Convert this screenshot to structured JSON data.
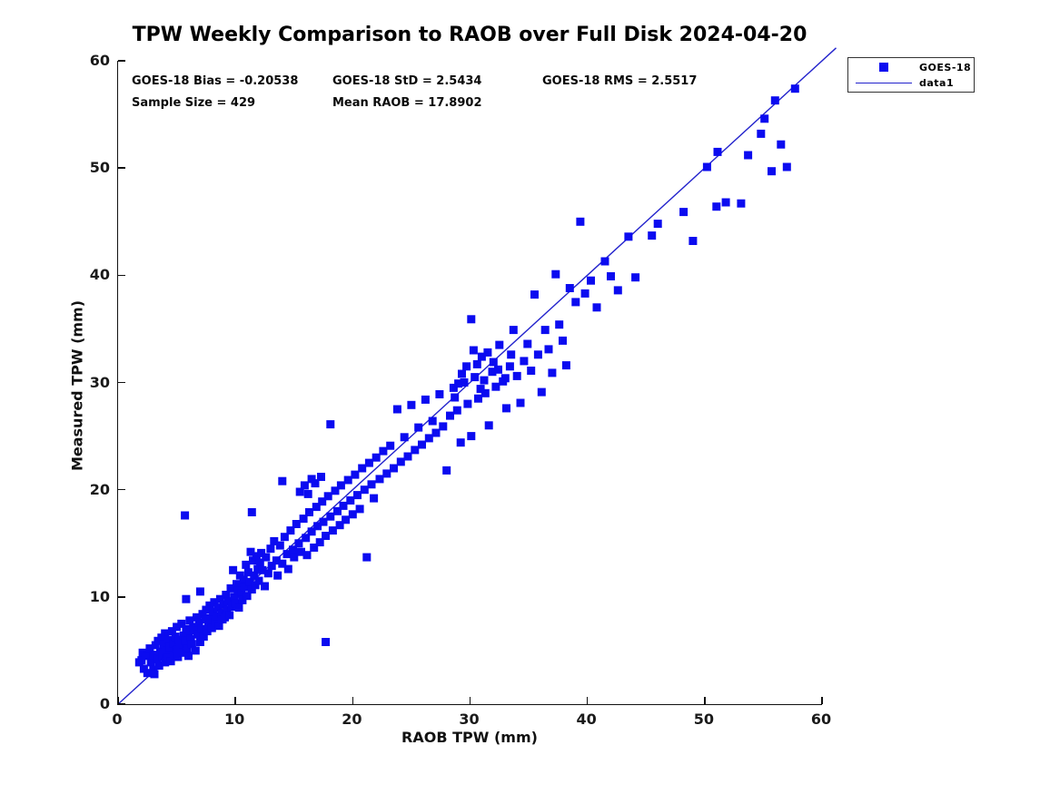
{
  "chart_data": {
    "type": "scatter",
    "title": "TPW Weekly Comparison to RAOB over Full Disk 2024-04-20",
    "xlabel": "RAOB TPW (mm)",
    "ylabel": "Measured TPW (mm)",
    "xlim": [
      0,
      60
    ],
    "ylim": [
      0,
      60
    ],
    "xticks": [
      0,
      10,
      20,
      30,
      40,
      50,
      60
    ],
    "yticks": [
      0,
      10,
      20,
      30,
      40,
      50,
      60
    ],
    "grid": false,
    "legend_position": "top-right-outside",
    "legend": [
      {
        "label": "GOES-18",
        "glyph": "square-marker"
      },
      {
        "label": "data1",
        "glyph": "line"
      }
    ],
    "stats": {
      "bias": "GOES-18 Bias = -0.20538",
      "std": "GOES-18 StD = 2.5434",
      "rms": "GOES-18 RMS = 2.5517",
      "sample": "Sample Size = 429",
      "mean_raob": "Mean RAOB = 17.8902"
    },
    "colors": {
      "marker": "#0b0bf0",
      "line": "#2222cc",
      "axis": "#111111"
    },
    "identity_line": {
      "x": [
        0,
        61.2
      ],
      "y": [
        0,
        61.2
      ]
    },
    "marker_size_px": 9,
    "series": [
      {
        "name": "GOES-18",
        "marker": "square",
        "points": [
          [
            1.8,
            3.9
          ],
          [
            2.0,
            4.1
          ],
          [
            2.1,
            4.8
          ],
          [
            2.2,
            3.3
          ],
          [
            2.4,
            4.5
          ],
          [
            2.5,
            2.9
          ],
          [
            2.7,
            5.2
          ],
          [
            2.8,
            3.9
          ],
          [
            3.0,
            4.6
          ],
          [
            3.0,
            3.2
          ],
          [
            3.1,
            2.8
          ],
          [
            3.2,
            5.5
          ],
          [
            3.3,
            4.2
          ],
          [
            3.4,
            5.9
          ],
          [
            3.5,
            3.6
          ],
          [
            3.6,
            4.9
          ],
          [
            3.7,
            6.2
          ],
          [
            3.8,
            4.4
          ],
          [
            3.9,
            5.6
          ],
          [
            4.0,
            3.9
          ],
          [
            4.0,
            6.6
          ],
          [
            4.1,
            5.0
          ],
          [
            4.2,
            4.3
          ],
          [
            4.3,
            6.0
          ],
          [
            4.4,
            5.3
          ],
          [
            4.5,
            4.0
          ],
          [
            4.6,
            6.8
          ],
          [
            4.7,
            5.7
          ],
          [
            4.8,
            4.6
          ],
          [
            4.9,
            6.3
          ],
          [
            5.0,
            5.1
          ],
          [
            5.0,
            7.2
          ],
          [
            5.1,
            4.4
          ],
          [
            5.2,
            6.0
          ],
          [
            5.3,
            5.5
          ],
          [
            5.4,
            7.5
          ],
          [
            5.5,
            4.8
          ],
          [
            5.7,
            17.6
          ],
          [
            5.6,
            6.4
          ],
          [
            5.7,
            5.9
          ],
          [
            5.8,
            7.0
          ],
          [
            5.8,
            9.8
          ],
          [
            5.9,
            5.2
          ],
          [
            6.0,
            6.7
          ],
          [
            6.0,
            4.5
          ],
          [
            6.1,
            7.8
          ],
          [
            6.2,
            6.1
          ],
          [
            6.3,
            5.6
          ],
          [
            6.4,
            7.2
          ],
          [
            6.5,
            6.9
          ],
          [
            6.6,
            5.0
          ],
          [
            6.7,
            8.1
          ],
          [
            6.8,
            6.5
          ],
          [
            6.9,
            7.6
          ],
          [
            7.0,
            5.8
          ],
          [
            7.0,
            10.5
          ],
          [
            7.1,
            7.0
          ],
          [
            7.2,
            8.4
          ],
          [
            7.3,
            6.3
          ],
          [
            7.4,
            7.9
          ],
          [
            7.5,
            8.8
          ],
          [
            7.6,
            6.8
          ],
          [
            7.7,
            7.4
          ],
          [
            7.8,
            9.2
          ],
          [
            7.9,
            8.0
          ],
          [
            8.0,
            7.1
          ],
          [
            8.1,
            8.6
          ],
          [
            8.2,
            9.5
          ],
          [
            8.3,
            7.7
          ],
          [
            8.4,
            8.2
          ],
          [
            8.5,
            9.0
          ],
          [
            8.6,
            7.3
          ],
          [
            8.7,
            9.8
          ],
          [
            8.8,
            8.5
          ],
          [
            8.9,
            7.9
          ],
          [
            9.0,
            9.3
          ],
          [
            9.1,
            8.1
          ],
          [
            9.2,
            10.2
          ],
          [
            9.3,
            8.8
          ],
          [
            9.4,
            9.6
          ],
          [
            9.5,
            8.3
          ],
          [
            9.6,
            10.8
          ],
          [
            9.7,
            9.1
          ],
          [
            9.8,
            12.5
          ],
          [
            9.9,
            10.0
          ],
          [
            10.0,
            9.4
          ],
          [
            10.1,
            11.2
          ],
          [
            10.2,
            10.6
          ],
          [
            10.3,
            9.0
          ],
          [
            10.4,
            12.0
          ],
          [
            10.5,
            10.3
          ],
          [
            10.6,
            9.7
          ],
          [
            10.7,
            11.6
          ],
          [
            10.8,
            10.9
          ],
          [
            10.9,
            13.0
          ],
          [
            11.0,
            10.1
          ],
          [
            11.1,
            12.3
          ],
          [
            11.2,
            11.4
          ],
          [
            11.3,
            14.2
          ],
          [
            11.4,
            17.9
          ],
          [
            11.4,
            10.7
          ],
          [
            11.5,
            13.4
          ],
          [
            11.6,
            12.0
          ],
          [
            11.7,
            11.1
          ],
          [
            11.8,
            13.8
          ],
          [
            11.9,
            12.6
          ],
          [
            12.0,
            11.5
          ],
          [
            12.1,
            13.2
          ],
          [
            12.2,
            14.1
          ],
          [
            12.3,
            12.5
          ],
          [
            12.5,
            11.0
          ],
          [
            12.6,
            13.7
          ],
          [
            12.8,
            12.2
          ],
          [
            13.0,
            14.5
          ],
          [
            13.1,
            12.9
          ],
          [
            13.3,
            15.2
          ],
          [
            13.5,
            13.4
          ],
          [
            13.6,
            12.0
          ],
          [
            13.8,
            14.8
          ],
          [
            14.0,
            20.8
          ],
          [
            14.0,
            13.1
          ],
          [
            14.2,
            15.6
          ],
          [
            14.4,
            14.0
          ],
          [
            14.5,
            12.6
          ],
          [
            14.7,
            16.2
          ],
          [
            14.9,
            14.4
          ],
          [
            15.0,
            13.7
          ],
          [
            15.2,
            16.8
          ],
          [
            15.4,
            15.0
          ],
          [
            15.5,
            19.8
          ],
          [
            15.6,
            14.2
          ],
          [
            15.8,
            17.3
          ],
          [
            15.9,
            20.4
          ],
          [
            16.0,
            15.5
          ],
          [
            16.1,
            13.9
          ],
          [
            16.2,
            19.6
          ],
          [
            16.3,
            17.9
          ],
          [
            16.5,
            21.0
          ],
          [
            16.5,
            16.1
          ],
          [
            16.7,
            14.6
          ],
          [
            16.8,
            20.6
          ],
          [
            16.9,
            18.4
          ],
          [
            17.0,
            16.6
          ],
          [
            17.2,
            15.1
          ],
          [
            17.3,
            21.2
          ],
          [
            17.4,
            18.9
          ],
          [
            17.5,
            17.0
          ],
          [
            17.7,
            15.7
          ],
          [
            17.7,
            5.8
          ],
          [
            17.9,
            19.4
          ],
          [
            18.1,
            26.1
          ],
          [
            18.1,
            17.5
          ],
          [
            18.3,
            16.2
          ],
          [
            18.5,
            19.9
          ],
          [
            18.7,
            18.0
          ],
          [
            18.9,
            16.7
          ],
          [
            19.0,
            20.4
          ],
          [
            19.2,
            18.5
          ],
          [
            19.4,
            17.2
          ],
          [
            19.6,
            20.9
          ],
          [
            19.8,
            19.0
          ],
          [
            20.0,
            17.7
          ],
          [
            20.2,
            21.4
          ],
          [
            20.4,
            19.5
          ],
          [
            20.6,
            18.2
          ],
          [
            20.8,
            22.0
          ],
          [
            21.0,
            20.0
          ],
          [
            21.2,
            13.7
          ],
          [
            21.4,
            22.5
          ],
          [
            21.6,
            20.5
          ],
          [
            21.8,
            19.2
          ],
          [
            22.0,
            23.0
          ],
          [
            22.3,
            21.0
          ],
          [
            22.6,
            23.6
          ],
          [
            22.9,
            21.5
          ],
          [
            23.2,
            24.1
          ],
          [
            23.5,
            22.0
          ],
          [
            23.8,
            27.5
          ],
          [
            24.1,
            22.6
          ],
          [
            24.4,
            24.9
          ],
          [
            24.7,
            23.1
          ],
          [
            25.0,
            27.9
          ],
          [
            25.3,
            23.7
          ],
          [
            25.6,
            25.8
          ],
          [
            25.9,
            24.2
          ],
          [
            26.2,
            28.4
          ],
          [
            26.5,
            24.8
          ],
          [
            26.8,
            26.4
          ],
          [
            27.1,
            25.3
          ],
          [
            27.4,
            28.9
          ],
          [
            27.7,
            25.9
          ],
          [
            28.0,
            21.8
          ],
          [
            28.3,
            26.9
          ],
          [
            28.6,
            29.5
          ],
          [
            28.7,
            28.6
          ],
          [
            28.9,
            27.4
          ],
          [
            29.0,
            29.9
          ],
          [
            29.2,
            24.4
          ],
          [
            29.3,
            30.8
          ],
          [
            29.5,
            30.0
          ],
          [
            29.7,
            31.5
          ],
          [
            29.8,
            28.0
          ],
          [
            30.1,
            35.9
          ],
          [
            30.1,
            25.0
          ],
          [
            30.3,
            33.0
          ],
          [
            30.4,
            30.5
          ],
          [
            30.6,
            31.7
          ],
          [
            30.7,
            28.5
          ],
          [
            30.9,
            29.4
          ],
          [
            31.0,
            32.4
          ],
          [
            31.2,
            30.2
          ],
          [
            31.3,
            29.0
          ],
          [
            31.5,
            32.8
          ],
          [
            31.6,
            26.0
          ],
          [
            31.9,
            31.0
          ],
          [
            32.0,
            31.9
          ],
          [
            32.2,
            29.6
          ],
          [
            32.4,
            31.2
          ],
          [
            32.5,
            33.5
          ],
          [
            32.8,
            30.1
          ],
          [
            33.0,
            30.4
          ],
          [
            33.1,
            27.6
          ],
          [
            33.4,
            31.5
          ],
          [
            33.5,
            32.6
          ],
          [
            33.7,
            34.9
          ],
          [
            34.0,
            30.6
          ],
          [
            34.3,
            28.1
          ],
          [
            34.6,
            32.0
          ],
          [
            34.9,
            33.6
          ],
          [
            35.2,
            31.1
          ],
          [
            35.5,
            38.2
          ],
          [
            35.8,
            32.6
          ],
          [
            36.1,
            29.1
          ],
          [
            36.4,
            34.9
          ],
          [
            36.7,
            33.1
          ],
          [
            37.0,
            30.9
          ],
          [
            37.3,
            40.1
          ],
          [
            37.6,
            35.4
          ],
          [
            37.9,
            33.9
          ],
          [
            38.2,
            31.6
          ],
          [
            38.5,
            38.8
          ],
          [
            39.0,
            37.5
          ],
          [
            39.4,
            45.0
          ],
          [
            39.8,
            38.3
          ],
          [
            40.3,
            39.5
          ],
          [
            40.8,
            37.0
          ],
          [
            41.5,
            41.3
          ],
          [
            42.0,
            39.9
          ],
          [
            42.6,
            38.6
          ],
          [
            43.5,
            43.6
          ],
          [
            44.1,
            39.8
          ],
          [
            45.5,
            43.7
          ],
          [
            46.0,
            44.8
          ],
          [
            48.2,
            45.9
          ],
          [
            49.0,
            43.2
          ],
          [
            50.2,
            50.1
          ],
          [
            51.0,
            46.4
          ],
          [
            51.1,
            51.5
          ],
          [
            51.8,
            46.8
          ],
          [
            53.1,
            46.7
          ],
          [
            53.7,
            51.2
          ],
          [
            54.8,
            53.2
          ],
          [
            55.1,
            54.6
          ],
          [
            55.7,
            49.7
          ],
          [
            56.0,
            56.3
          ],
          [
            56.5,
            52.2
          ],
          [
            57.0,
            50.1
          ],
          [
            57.7,
            57.4
          ]
        ]
      }
    ]
  }
}
